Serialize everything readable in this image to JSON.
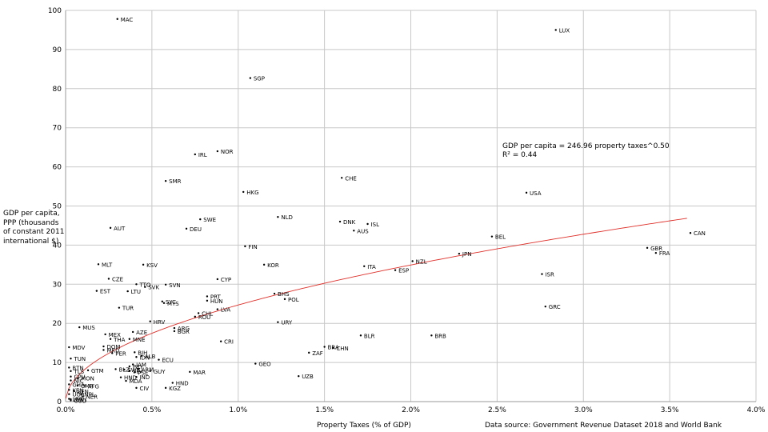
{
  "chart_data": {
    "type": "scatter",
    "title": "",
    "xlabel": "Property Taxes (% of GDP)",
    "ylabel": "GDP per capita, PPP (thousands of constant 2011 international $)",
    "source": "Data source:  Government Revenue Dataset 2018 and World Bank",
    "xlim": [
      0,
      0.04
    ],
    "ylim": [
      0,
      100
    ],
    "x_ticks": [
      "0.0%",
      "0.5%",
      "1.0%",
      "1.5%",
      "2.0%",
      "2.5%",
      "3.0%",
      "3.5%",
      "4.0%"
    ],
    "y_ticks": [
      "0",
      "10",
      "20",
      "30",
      "40",
      "50",
      "60",
      "70",
      "80",
      "90",
      "100"
    ],
    "grid": true,
    "trendline": {
      "type": "power",
      "coefficient": 246.96,
      "exponent": 0.5,
      "equation": "GDP per capita = 246.96 property taxes^0.50",
      "r2_label": "R² = 0.44",
      "color": "#e0302a"
    },
    "point_color": "#000000",
    "points": [
      {
        "label": "MAC",
        "x": 0.003,
        "y": 97.8
      },
      {
        "label": "LUX",
        "x": 0.0284,
        "y": 95.0
      },
      {
        "label": "SGP",
        "x": 0.0107,
        "y": 82.7
      },
      {
        "label": "NOR",
        "x": 0.0088,
        "y": 64.0
      },
      {
        "label": "IRL",
        "x": 0.0075,
        "y": 63.2
      },
      {
        "label": "CHE",
        "x": 0.016,
        "y": 57.2
      },
      {
        "label": "SMR",
        "x": 0.0058,
        "y": 56.4
      },
      {
        "label": "USA",
        "x": 0.0267,
        "y": 53.4
      },
      {
        "label": "HKG",
        "x": 0.0103,
        "y": 53.6
      },
      {
        "label": "NLD",
        "x": 0.0123,
        "y": 47.2
      },
      {
        "label": "SWE",
        "x": 0.0078,
        "y": 46.6
      },
      {
        "label": "DNK",
        "x": 0.0159,
        "y": 46.0
      },
      {
        "label": "ISL",
        "x": 0.0175,
        "y": 45.4
      },
      {
        "label": "AUT",
        "x": 0.0026,
        "y": 44.4
      },
      {
        "label": "DEU",
        "x": 0.007,
        "y": 44.2
      },
      {
        "label": "AUS",
        "x": 0.0167,
        "y": 43.7
      },
      {
        "label": "CAN",
        "x": 0.0362,
        "y": 43.1
      },
      {
        "label": "BEL",
        "x": 0.0247,
        "y": 42.2
      },
      {
        "label": "FIN",
        "x": 0.0104,
        "y": 39.7
      },
      {
        "label": "GBR",
        "x": 0.0337,
        "y": 39.3
      },
      {
        "label": "FRA",
        "x": 0.0342,
        "y": 38.0
      },
      {
        "label": "JPN",
        "x": 0.0228,
        "y": 37.8
      },
      {
        "label": "NZL",
        "x": 0.0201,
        "y": 35.9
      },
      {
        "label": "MLT",
        "x": 0.0019,
        "y": 35.1
      },
      {
        "label": "KSV",
        "x": 0.0045,
        "y": 35.0
      },
      {
        "label": "KOR",
        "x": 0.0115,
        "y": 35.0
      },
      {
        "label": "ITA",
        "x": 0.0173,
        "y": 34.6
      },
      {
        "label": "ESP",
        "x": 0.0191,
        "y": 33.6
      },
      {
        "label": "ISR",
        "x": 0.0276,
        "y": 32.6
      },
      {
        "label": "CZE",
        "x": 0.0025,
        "y": 31.4
      },
      {
        "label": "CYP",
        "x": 0.0088,
        "y": 31.3
      },
      {
        "label": "TTO",
        "x": 0.0041,
        "y": 30.0
      },
      {
        "label": "SVN",
        "x": 0.0058,
        "y": 29.9
      },
      {
        "label": "SVK",
        "x": 0.0046,
        "y": 29.3
      },
      {
        "label": "EST",
        "x": 0.0018,
        "y": 28.3
      },
      {
        "label": "LTU",
        "x": 0.0036,
        "y": 28.2
      },
      {
        "label": "BHS",
        "x": 0.0121,
        "y": 27.6
      },
      {
        "label": "PRT",
        "x": 0.0082,
        "y": 26.9
      },
      {
        "label": "POL",
        "x": 0.0127,
        "y": 26.2
      },
      {
        "label": "HUN",
        "x": 0.0082,
        "y": 25.8
      },
      {
        "label": "SYC",
        "x": 0.0056,
        "y": 25.6
      },
      {
        "label": "MYS",
        "x": 0.0057,
        "y": 25.2
      },
      {
        "label": "GRC",
        "x": 0.0278,
        "y": 24.3
      },
      {
        "label": "TUR",
        "x": 0.0031,
        "y": 24.0
      },
      {
        "label": "LVA",
        "x": 0.0088,
        "y": 23.6
      },
      {
        "label": "CHL",
        "x": 0.0077,
        "y": 22.6
      },
      {
        "label": "ROU",
        "x": 0.0075,
        "y": 21.7
      },
      {
        "label": "HRV",
        "x": 0.0049,
        "y": 20.5
      },
      {
        "label": "URY",
        "x": 0.0123,
        "y": 20.3
      },
      {
        "label": "MUS",
        "x": 0.0008,
        "y": 19.0
      },
      {
        "label": "ARG",
        "x": 0.0063,
        "y": 18.8
      },
      {
        "label": "AZE",
        "x": 0.0039,
        "y": 17.8
      },
      {
        "label": "BGR",
        "x": 0.0063,
        "y": 18.0
      },
      {
        "label": "MEX",
        "x": 0.0023,
        "y": 17.2
      },
      {
        "label": "BLR",
        "x": 0.0171,
        "y": 16.9
      },
      {
        "label": "BRB",
        "x": 0.0212,
        "y": 16.9
      },
      {
        "label": "THA",
        "x": 0.0026,
        "y": 16.0
      },
      {
        "label": "MNE",
        "x": 0.0037,
        "y": 16.0
      },
      {
        "label": "CRI",
        "x": 0.009,
        "y": 15.4
      },
      {
        "label": "DOM",
        "x": 0.0022,
        "y": 14.1
      },
      {
        "label": "MDV",
        "x": 0.0002,
        "y": 13.9
      },
      {
        "label": "BRA",
        "x": 0.015,
        "y": 14.0
      },
      {
        "label": "CHN",
        "x": 0.0155,
        "y": 13.7
      },
      {
        "label": "MKD",
        "x": 0.0022,
        "y": 13.2
      },
      {
        "label": "BIH",
        "x": 0.004,
        "y": 12.6
      },
      {
        "label": "PER",
        "x": 0.0027,
        "y": 12.4
      },
      {
        "label": "ZAF",
        "x": 0.0141,
        "y": 12.5
      },
      {
        "label": "ALB",
        "x": 0.0044,
        "y": 11.7
      },
      {
        "label": "IDN",
        "x": 0.0041,
        "y": 11.4
      },
      {
        "label": "TUN",
        "x": 0.0003,
        "y": 11.0
      },
      {
        "label": "ECU",
        "x": 0.0054,
        "y": 10.7
      },
      {
        "label": "GEO",
        "x": 0.011,
        "y": 9.7
      },
      {
        "label": "JAM",
        "x": 0.0039,
        "y": 9.5
      },
      {
        "label": "PRY",
        "x": 0.0037,
        "y": 9.0
      },
      {
        "label": "BTN",
        "x": 0.0002,
        "y": 8.7
      },
      {
        "label": "ARM",
        "x": 0.0042,
        "y": 8.3
      },
      {
        "label": "BLZ",
        "x": 0.0029,
        "y": 8.3
      },
      {
        "label": "SWZ",
        "x": 0.0034,
        "y": 8.2
      },
      {
        "label": "GTM",
        "x": 0.0013,
        "y": 8.0
      },
      {
        "label": "TLS",
        "x": 0.0003,
        "y": 7.8
      },
      {
        "label": "GUY",
        "x": 0.0049,
        "y": 7.8
      },
      {
        "label": "SLV",
        "x": 0.0037,
        "y": 7.9
      },
      {
        "label": "MAR",
        "x": 0.0072,
        "y": 7.6
      },
      {
        "label": "PSE",
        "x": 0.004,
        "y": 7.5
      },
      {
        "label": "CPV",
        "x": 0.0003,
        "y": 6.4
      },
      {
        "label": "UZB",
        "x": 0.0135,
        "y": 6.5
      },
      {
        "label": "HND",
        "x": 0.0032,
        "y": 6.2
      },
      {
        "label": "IND",
        "x": 0.0041,
        "y": 6.3
      },
      {
        "label": "MON",
        "x": 0.0007,
        "y": 6.0
      },
      {
        "label": "NIC",
        "x": 0.0003,
        "y": 5.4
      },
      {
        "label": "MDA",
        "x": 0.0035,
        "y": 5.3
      },
      {
        "label": "HND",
        "x": 0.0062,
        "y": 4.8
      },
      {
        "label": "GHA",
        "x": 0.0002,
        "y": 4.4
      },
      {
        "label": "CMR",
        "x": 0.0007,
        "y": 4.1
      },
      {
        "label": "AFG",
        "x": 0.0011,
        "y": 4.0
      },
      {
        "label": "CIV",
        "x": 0.0041,
        "y": 3.5
      },
      {
        "label": "KGZ",
        "x": 0.0058,
        "y": 3.5
      },
      {
        "label": "KEN",
        "x": 0.0002,
        "y": 3.0
      },
      {
        "label": "SEN",
        "x": 0.0005,
        "y": 2.7
      },
      {
        "label": "UGA",
        "x": 0.0002,
        "y": 1.9
      },
      {
        "label": "NPL",
        "x": 0.0009,
        "y": 1.9
      },
      {
        "label": "NER",
        "x": 0.001,
        "y": 1.3
      },
      {
        "label": "LBR",
        "x": 0.0002,
        "y": 0.7
      },
      {
        "label": "MWI",
        "x": 0.0003,
        "y": 0.6
      },
      {
        "label": "COD",
        "x": 0.0003,
        "y": 0.3
      }
    ]
  }
}
